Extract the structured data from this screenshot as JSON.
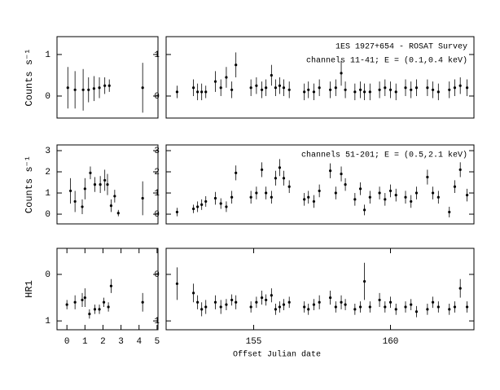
{
  "chart_data": [
    {
      "type": "scatter",
      "color": "#000000",
      "ylabel": "Counts s⁻¹",
      "xlim": [
        -0.55,
        5.05
      ],
      "ylim": [
        -0.53,
        1.43
      ],
      "yticks": [
        0,
        1
      ],
      "x": [
        0.05,
        0.45,
        0.9,
        1.2,
        1.5,
        1.8,
        2.1,
        2.35,
        4.2
      ],
      "values": [
        0.2,
        0.15,
        0.15,
        0.15,
        0.18,
        0.2,
        0.25,
        0.25,
        0.2
      ],
      "errors": [
        0.5,
        0.45,
        0.5,
        0.3,
        0.3,
        0.25,
        0.2,
        0.15,
        0.6
      ]
    },
    {
      "type": "scatter",
      "color": "#000000",
      "annotations": [
        "1ES 1927+654 - ROSAT Survey",
        "channels 11-41; E = (0.1,0.4 keV)"
      ],
      "xlim": [
        151.8,
        163.05
      ],
      "ylim": [
        -0.53,
        1.43
      ],
      "yticks": [
        0,
        1
      ],
      "x": [
        152.2,
        152.8,
        152.95,
        153.1,
        153.25,
        153.6,
        153.8,
        154.0,
        154.2,
        154.35,
        154.9,
        155.1,
        155.3,
        155.45,
        155.65,
        155.8,
        155.95,
        156.1,
        156.3,
        156.85,
        157.0,
        157.2,
        157.4,
        157.8,
        158.0,
        158.2,
        158.35,
        158.7,
        158.9,
        159.05,
        159.25,
        159.6,
        159.8,
        160.0,
        160.2,
        160.55,
        160.75,
        160.95,
        161.35,
        161.55,
        161.75,
        162.15,
        162.35,
        162.55,
        162.8
      ],
      "values": [
        0.1,
        0.2,
        0.1,
        0.1,
        0.1,
        0.35,
        0.2,
        0.45,
        0.15,
        0.75,
        0.2,
        0.25,
        0.15,
        0.2,
        0.5,
        0.2,
        0.25,
        0.2,
        0.15,
        0.1,
        0.15,
        0.1,
        0.2,
        0.15,
        0.2,
        0.55,
        0.15,
        0.1,
        0.15,
        0.1,
        0.1,
        0.15,
        0.2,
        0.15,
        0.1,
        0.2,
        0.15,
        0.2,
        0.2,
        0.15,
        0.1,
        0.15,
        0.2,
        0.25,
        0.2
      ],
      "errors": [
        0.15,
        0.2,
        0.2,
        0.2,
        0.15,
        0.25,
        0.2,
        0.25,
        0.2,
        0.3,
        0.2,
        0.2,
        0.2,
        0.2,
        0.25,
        0.2,
        0.2,
        0.2,
        0.2,
        0.2,
        0.2,
        0.2,
        0.2,
        0.2,
        0.2,
        0.3,
        0.2,
        0.2,
        0.2,
        0.2,
        0.2,
        0.2,
        0.2,
        0.2,
        0.2,
        0.2,
        0.2,
        0.2,
        0.2,
        0.2,
        0.2,
        0.2,
        0.2,
        0.2,
        0.2
      ]
    },
    {
      "type": "scatter",
      "color": "#000000",
      "ylabel": "Counts s⁻¹",
      "xlim": [
        -0.55,
        5.05
      ],
      "ylim": [
        -0.46,
        3.27
      ],
      "yticks": [
        0,
        1,
        2,
        3
      ],
      "x": [
        0.2,
        0.45,
        0.85,
        1.0,
        1.3,
        1.55,
        1.85,
        2.1,
        2.25,
        2.45,
        2.65,
        2.85,
        4.2
      ],
      "values": [
        1.1,
        0.6,
        0.35,
        1.2,
        1.95,
        1.4,
        1.4,
        1.6,
        1.4,
        0.4,
        0.85,
        0.05,
        0.75
      ],
      "errors": [
        0.6,
        0.5,
        0.35,
        0.5,
        0.3,
        0.35,
        0.4,
        0.5,
        0.5,
        0.3,
        0.3,
        0.15,
        0.8
      ]
    },
    {
      "type": "scatter",
      "color": "#000000",
      "annotations": [
        "channels 51-201; E = (0.5,2.1 keV)"
      ],
      "xlim": [
        151.8,
        163.05
      ],
      "ylim": [
        -0.46,
        3.27
      ],
      "yticks": [
        0,
        1,
        2,
        3
      ],
      "x": [
        152.2,
        152.8,
        152.95,
        153.1,
        153.25,
        153.6,
        153.8,
        154.0,
        154.2,
        154.35,
        154.9,
        155.1,
        155.3,
        155.45,
        155.65,
        155.8,
        155.95,
        156.1,
        156.3,
        156.85,
        157.0,
        157.2,
        157.4,
        157.8,
        158.0,
        158.2,
        158.35,
        158.7,
        158.9,
        159.05,
        159.25,
        159.6,
        159.8,
        160.0,
        160.2,
        160.55,
        160.75,
        160.95,
        161.35,
        161.55,
        161.75,
        162.15,
        162.35,
        162.55,
        162.8
      ],
      "values": [
        0.1,
        0.25,
        0.35,
        0.45,
        0.6,
        0.75,
        0.5,
        0.35,
        0.8,
        1.95,
        0.8,
        1.0,
        2.1,
        1.0,
        0.8,
        1.7,
        2.2,
        1.7,
        1.3,
        0.7,
        0.8,
        0.6,
        1.1,
        2.05,
        1.0,
        1.9,
        1.4,
        0.7,
        1.2,
        0.2,
        0.8,
        1.0,
        0.7,
        1.1,
        0.9,
        0.8,
        0.6,
        1.0,
        1.75,
        1.0,
        0.8,
        0.1,
        1.3,
        2.1,
        0.9
      ],
      "errors": [
        0.2,
        0.2,
        0.25,
        0.25,
        0.25,
        0.3,
        0.25,
        0.25,
        0.3,
        0.35,
        0.3,
        0.3,
        0.35,
        0.3,
        0.3,
        0.35,
        0.4,
        0.35,
        0.3,
        0.3,
        0.3,
        0.3,
        0.3,
        0.35,
        0.3,
        0.35,
        0.3,
        0.3,
        0.3,
        0.25,
        0.3,
        0.3,
        0.3,
        0.3,
        0.3,
        0.3,
        0.3,
        0.3,
        0.35,
        0.3,
        0.3,
        0.25,
        0.3,
        0.35,
        0.3
      ]
    },
    {
      "type": "scatter",
      "color": "#000000",
      "ylabel": "HR1",
      "xlim": [
        -0.55,
        5.05
      ],
      "ylim": [
        1.19,
        -0.56
      ],
      "yticks": [
        0,
        1
      ],
      "xticks": [
        0,
        1,
        2,
        3,
        4,
        5
      ],
      "x": [
        0.0,
        0.45,
        0.85,
        1.0,
        1.25,
        1.55,
        1.8,
        2.05,
        2.3,
        2.45,
        4.2
      ],
      "values": [
        0.65,
        0.6,
        0.55,
        0.5,
        0.85,
        0.75,
        0.75,
        0.6,
        0.7,
        0.25,
        0.6
      ],
      "errors": [
        0.1,
        0.15,
        0.15,
        0.2,
        0.1,
        0.1,
        0.1,
        0.1,
        0.1,
        0.15,
        0.2
      ]
    },
    {
      "type": "scatter",
      "color": "#000000",
      "xlabel": "Offset Julian date",
      "xlim": [
        151.8,
        163.05
      ],
      "ylim": [
        1.19,
        -0.56
      ],
      "yticks": [
        0,
        1
      ],
      "xticks": [
        155,
        160
      ],
      "x": [
        152.2,
        152.8,
        152.95,
        153.1,
        153.25,
        153.6,
        153.8,
        154.0,
        154.2,
        154.35,
        154.9,
        155.1,
        155.3,
        155.45,
        155.65,
        155.8,
        155.95,
        156.1,
        156.3,
        156.85,
        157.0,
        157.2,
        157.4,
        157.8,
        158.0,
        158.2,
        158.35,
        158.7,
        158.9,
        159.05,
        159.25,
        159.6,
        159.8,
        160.0,
        160.2,
        160.55,
        160.75,
        160.95,
        161.35,
        161.55,
        161.75,
        162.15,
        162.35,
        162.55,
        162.8
      ],
      "values": [
        0.2,
        0.4,
        0.6,
        0.75,
        0.7,
        0.6,
        0.7,
        0.65,
        0.55,
        0.6,
        0.7,
        0.6,
        0.5,
        0.55,
        0.45,
        0.75,
        0.7,
        0.65,
        0.6,
        0.7,
        0.75,
        0.65,
        0.6,
        0.5,
        0.7,
        0.6,
        0.65,
        0.75,
        0.7,
        0.15,
        0.7,
        0.55,
        0.7,
        0.6,
        0.75,
        0.7,
        0.65,
        0.8,
        0.75,
        0.6,
        0.7,
        0.75,
        0.7,
        0.3,
        0.7
      ],
      "errors": [
        0.35,
        0.2,
        0.15,
        0.15,
        0.15,
        0.15,
        0.15,
        0.12,
        0.12,
        0.15,
        0.12,
        0.12,
        0.15,
        0.12,
        0.15,
        0.12,
        0.12,
        0.12,
        0.12,
        0.12,
        0.12,
        0.12,
        0.15,
        0.15,
        0.12,
        0.15,
        0.12,
        0.12,
        0.12,
        0.4,
        0.12,
        0.15,
        0.12,
        0.12,
        0.12,
        0.12,
        0.12,
        0.12,
        0.12,
        0.12,
        0.12,
        0.12,
        0.12,
        0.2,
        0.12
      ]
    }
  ]
}
